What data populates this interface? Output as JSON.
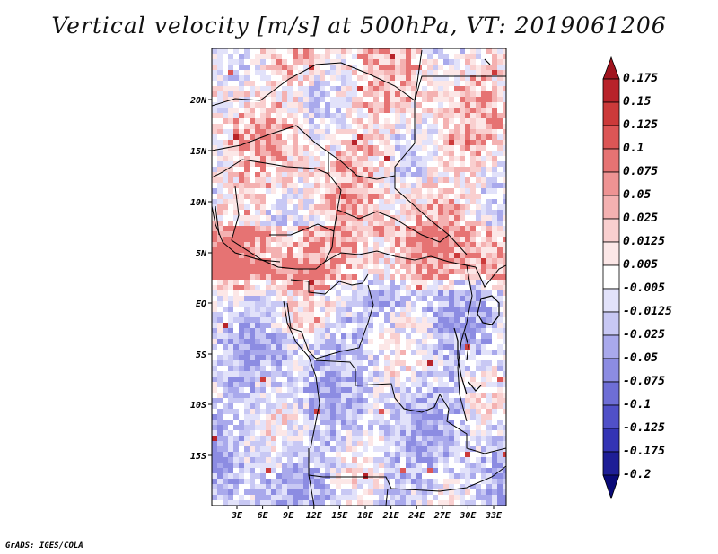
{
  "title": "Vertical velocity [m/s] at 500hPa, VT: 2019061206",
  "map": {
    "lat_labels": [
      "20N",
      "15N",
      "10N",
      "5N",
      "EQ",
      "5S",
      "10S",
      "15S"
    ],
    "lon_labels": [
      "3E",
      "6E",
      "9E",
      "12E",
      "15E",
      "18E",
      "21E",
      "24E",
      "27E",
      "30E",
      "33E"
    ]
  },
  "colorbar": {
    "levels": [
      "0.175",
      "0.15",
      "0.125",
      "0.1",
      "0.075",
      "0.05",
      "0.025",
      "0.0125",
      "0.005",
      "-0.005",
      "-0.0125",
      "-0.025",
      "-0.05",
      "-0.075",
      "-0.1",
      "-0.125",
      "-0.175",
      "-0.2"
    ],
    "colors": [
      "#a0141e",
      "#b8232a",
      "#cc3a3a",
      "#dc5656",
      "#e67373",
      "#ee9393",
      "#f4b1b1",
      "#f9cfcf",
      "#fce7e7",
      "#ffffff",
      "#e2e2fa",
      "#c8c8f4",
      "#a9a9ec",
      "#8c8ce2",
      "#6e6ed6",
      "#5050c8",
      "#3434b4",
      "#1e1e96",
      "#0a0a78"
    ]
  },
  "credit": "GrADS: IGES/COLA"
}
